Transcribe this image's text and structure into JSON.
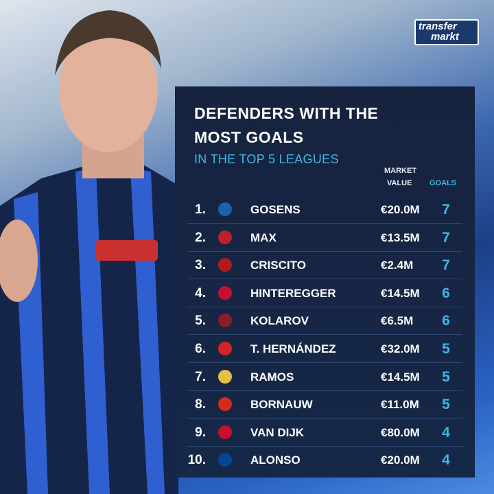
{
  "logo": {
    "line1": "transfer",
    "line2": "markt"
  },
  "header": {
    "title_line1": "DEFENDERS WITH THE",
    "title_line2": "MOST GOALS",
    "subtitle": "IN THE TOP 5 LEAGUES"
  },
  "table": {
    "columns": {
      "market_value_line1": "MARKET",
      "market_value_line2": "VALUE",
      "goals": "GOALS"
    },
    "rows": [
      [
        "1.",
        "GOSENS",
        "€20.0M",
        7
      ],
      [
        "2.",
        "MAX",
        "€13.5M",
        7
      ],
      [
        "3.",
        "CRISCITO",
        "€2.4M",
        7
      ],
      [
        "4.",
        "HINTEREGGER",
        "€14.5M",
        6
      ],
      [
        "5.",
        "KOLAROV",
        "€6.5M",
        6
      ],
      [
        "6.",
        "T. HERNÁNDEZ",
        "€32.0M",
        5
      ],
      [
        "7.",
        "RAMOS",
        "€14.5M",
        5
      ],
      [
        "8.",
        "BORNAUW",
        "€11.0M",
        5
      ],
      [
        "9.",
        "VAN DIJK",
        "€80.0M",
        4
      ],
      [
        "10.",
        "ALONSO",
        "€20.0M",
        4
      ]
    ]
  }
}
